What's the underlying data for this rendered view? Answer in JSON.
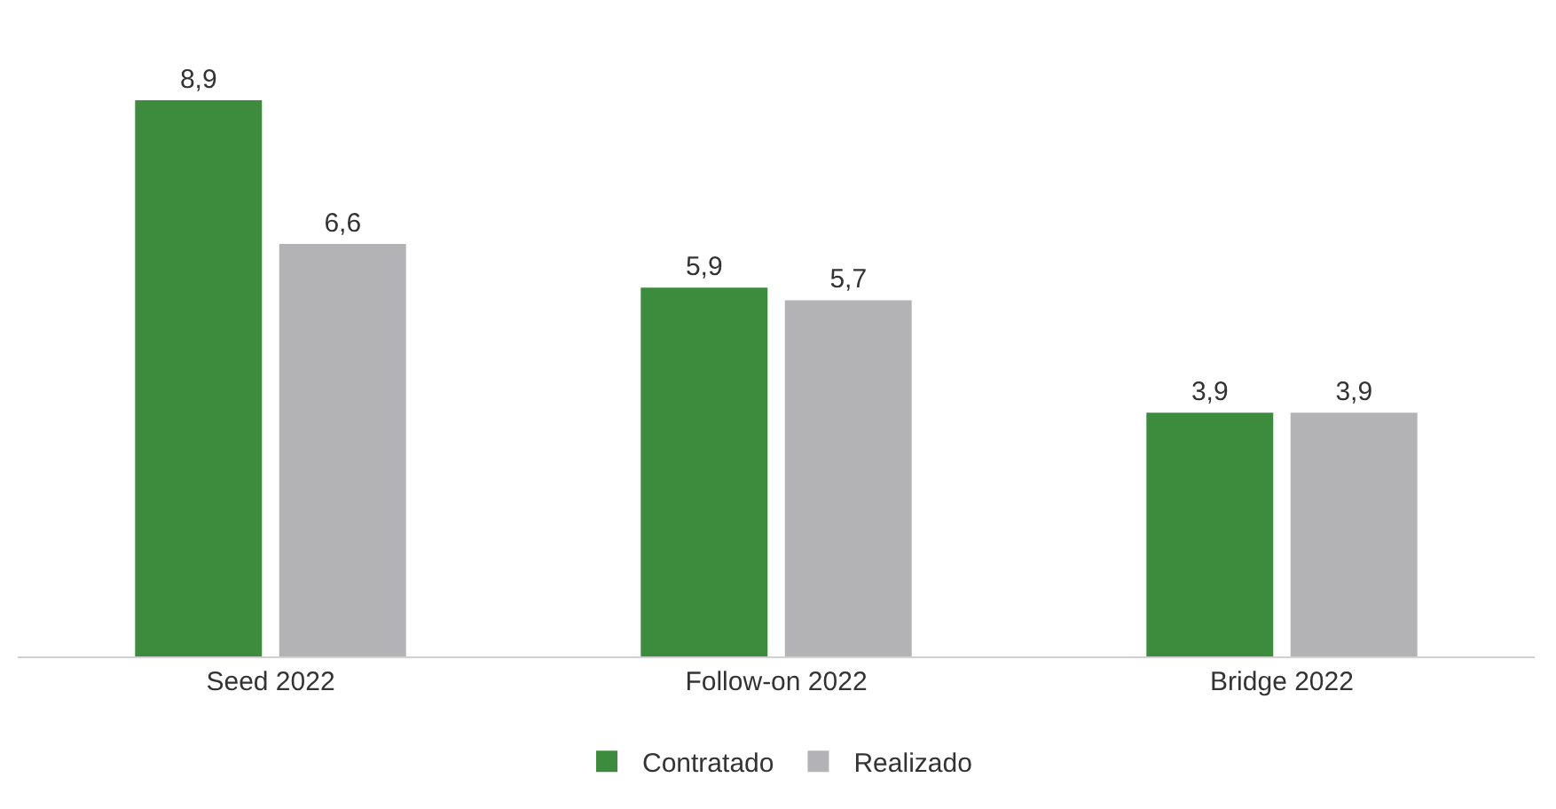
{
  "chart_data": {
    "type": "bar",
    "categories": [
      "Seed 2022",
      "Follow-on 2022",
      "Bridge 2022"
    ],
    "series": [
      {
        "name": "Contratado",
        "color": "#3d8b3d",
        "values": [
          8.9,
          5.9,
          3.9
        ],
        "value_labels": [
          "8,9",
          "5,9",
          "3,9"
        ]
      },
      {
        "name": "Realizado",
        "color": "#b3b3b6",
        "values": [
          6.6,
          5.7,
          3.9
        ],
        "value_labels": [
          "6,6",
          "5,7",
          "3,9"
        ]
      }
    ],
    "legend": "bottom",
    "grid": false
  }
}
